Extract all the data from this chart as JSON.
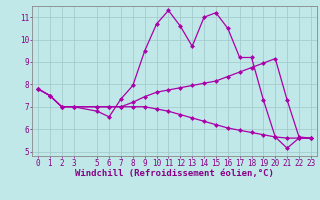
{
  "xlabel": "Windchill (Refroidissement éolien,°C)",
  "bg_color": "#c0e8e8",
  "line_color": "#aa00aa",
  "grid_color": "#a0c8c8",
  "xlim": [
    -0.5,
    23.5
  ],
  "ylim": [
    4.8,
    11.5
  ],
  "yticks": [
    5,
    6,
    7,
    8,
    9,
    10,
    11
  ],
  "xticks": [
    0,
    1,
    2,
    3,
    5,
    6,
    7,
    8,
    9,
    10,
    11,
    12,
    13,
    14,
    15,
    16,
    17,
    18,
    19,
    20,
    21,
    22,
    23
  ],
  "xtick_labels": [
    "0",
    "1",
    "2",
    "3",
    "5",
    "6",
    "7",
    "8",
    "9",
    "10",
    "11",
    "12",
    "13",
    "14",
    "15",
    "16",
    "17",
    "18",
    "19",
    "20",
    "21",
    "22",
    "23"
  ],
  "line1_x": [
    0,
    1,
    2,
    3,
    5,
    6,
    7,
    8,
    9,
    10,
    11,
    12,
    13,
    14,
    15,
    16,
    17,
    18,
    19,
    20,
    21,
    22,
    23
  ],
  "line1_y": [
    7.8,
    7.5,
    7.0,
    7.0,
    6.8,
    6.55,
    7.35,
    7.95,
    9.5,
    10.7,
    11.3,
    10.6,
    9.7,
    11.0,
    11.2,
    10.5,
    9.2,
    9.2,
    7.3,
    5.65,
    5.15,
    5.6,
    5.6
  ],
  "line2_x": [
    0,
    1,
    2,
    3,
    5,
    6,
    7,
    8,
    9,
    10,
    11,
    12,
    13,
    14,
    15,
    16,
    17,
    18,
    19,
    20,
    21,
    22,
    23
  ],
  "line2_y": [
    7.8,
    7.5,
    7.0,
    7.0,
    7.0,
    7.0,
    7.0,
    7.2,
    7.45,
    7.65,
    7.75,
    7.85,
    7.95,
    8.05,
    8.15,
    8.35,
    8.55,
    8.75,
    8.95,
    9.15,
    7.3,
    5.65,
    5.6
  ],
  "line3_x": [
    0,
    1,
    2,
    3,
    5,
    6,
    7,
    8,
    9,
    10,
    11,
    12,
    13,
    14,
    15,
    16,
    17,
    18,
    19,
    20,
    21,
    22,
    23
  ],
  "line3_y": [
    7.8,
    7.5,
    7.0,
    7.0,
    7.0,
    7.0,
    7.0,
    7.0,
    7.0,
    6.9,
    6.8,
    6.65,
    6.5,
    6.35,
    6.2,
    6.05,
    5.95,
    5.85,
    5.75,
    5.65,
    5.6,
    5.6,
    5.6
  ],
  "markersize": 2.5,
  "linewidth": 0.9,
  "tick_fontsize": 5.5,
  "label_fontsize": 6.5,
  "tick_color": "#880088",
  "axis_color": "#888888"
}
